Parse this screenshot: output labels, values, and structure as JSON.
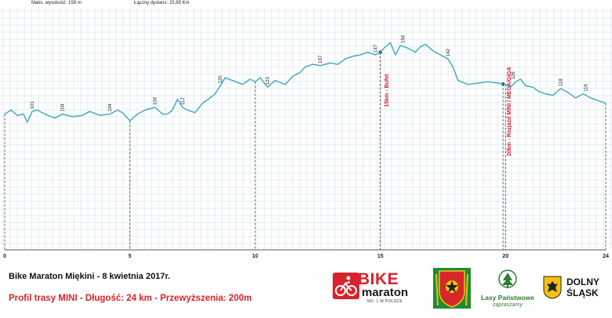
{
  "header": {
    "max_elevation": "Maks. wysokość: 159 m",
    "total_distance": "Łączny dystans: 23,99 Km"
  },
  "chart_data": {
    "type": "area",
    "title": "",
    "xlabel": "",
    "ylabel": "",
    "xlim": [
      0,
      24
    ],
    "ylim": [
      0,
      180
    ],
    "grid": true,
    "colors": {
      "line": "#45aac6",
      "grid": "#d9e6ee",
      "marker_text": "#d21f2a"
    },
    "x_ticks": [
      "0",
      "5",
      "10",
      "15",
      "20",
      "24"
    ],
    "x_tick_values": [
      0,
      5,
      10,
      15,
      20,
      24
    ],
    "series": [
      {
        "x": [
          0,
          0.25,
          0.5,
          0.75,
          0.9,
          1.1,
          1.3,
          1.6,
          2,
          2.3,
          2.7,
          3.1,
          3.4,
          3.8,
          4.2,
          4.5,
          4.7,
          4.85,
          5,
          5.3,
          5.6,
          6,
          6.3,
          6.5,
          6.7,
          6.9,
          7.1,
          7.3,
          7.6,
          7.9,
          8.2,
          8.4,
          8.6,
          8.8,
          9.1,
          9.5,
          9.8,
          10,
          10.2,
          10.5,
          10.8,
          11.2,
          11.5,
          11.8,
          12,
          12.3,
          12.6,
          13,
          13.3,
          13.6,
          13.9,
          14.2,
          14.5,
          14.8,
          15,
          15.2,
          15.4,
          15.6,
          15.8,
          16.1,
          16.4,
          16.6,
          16.8,
          17.1,
          17.4,
          17.7,
          17.9,
          18.1,
          18.5,
          18.9,
          19.3,
          19.7,
          20,
          20.2,
          20.4,
          20.6,
          20.8,
          21.1,
          21.3,
          21.6,
          21.9,
          22.2,
          22.5,
          22.8,
          23.1,
          23.4,
          23.7,
          24
        ],
        "y": [
          101,
          104,
          100,
          101,
          95,
          103,
          104,
          101,
          98,
          101,
          99,
          100,
          103,
          100,
          101,
          104,
          102,
          99,
          96,
          101,
          104,
          106,
          101,
          101,
          104,
          112,
          106,
          104,
          102,
          109,
          113,
          116,
          122,
          128,
          126,
          123,
          127,
          125,
          128,
          121,
          126,
          123,
          129,
          132,
          136,
          138,
          137,
          139,
          138,
          142,
          144,
          145,
          147,
          145,
          147,
          151,
          154,
          145,
          152,
          150,
          147,
          151,
          153,
          148,
          145,
          142,
          136,
          126,
          123,
          124,
          125,
          124,
          123,
          121,
          125,
          127,
          122,
          121,
          118,
          116,
          115,
          120,
          117,
          113,
          116,
          113,
          111,
          109
        ]
      }
    ],
    "point_labels": [
      {
        "x": 1.1,
        "y": 103,
        "text": "101"
      },
      {
        "x": 2.3,
        "y": 101,
        "text": "104"
      },
      {
        "x": 4.2,
        "y": 101,
        "text": "104"
      },
      {
        "x": 6.0,
        "y": 106,
        "text": "109"
      },
      {
        "x": 7.1,
        "y": 106,
        "text": "112"
      },
      {
        "x": 8.6,
        "y": 122,
        "text": "120"
      },
      {
        "x": 10.5,
        "y": 121,
        "text": "123"
      },
      {
        "x": 12.6,
        "y": 137,
        "text": "137"
      },
      {
        "x": 14.8,
        "y": 145,
        "text": "147"
      },
      {
        "x": 15.9,
        "y": 152,
        "text": "154"
      },
      {
        "x": 17.7,
        "y": 142,
        "text": "142"
      },
      {
        "x": 20.3,
        "y": 125,
        "text": "126"
      },
      {
        "x": 22.2,
        "y": 120,
        "text": "118"
      },
      {
        "x": 23.2,
        "y": 116,
        "text": "116"
      }
    ],
    "markers": [
      {
        "x": 15.0,
        "text": "15km - Bufet"
      },
      {
        "x": 19.9,
        "text": "20km - Rozjazd MINI - MEGA/GIGA"
      }
    ]
  },
  "footer": {
    "title": "Bike Maraton Miękini - 8 kwietnia 2017r.",
    "subtitle": "Profil trasy MINI - Długość: 24 km - Przewyższenia: 200m"
  },
  "logos": {
    "bike": {
      "word1": "BIKE",
      "word2": "maraton",
      "tagline": "NO. 1 W POLSCE"
    },
    "lasy": {
      "name": "Lasy Państwowe",
      "tagline": "zapraszamy"
    },
    "ds": {
      "line1": "DOLNY",
      "line2": "ŚLĄSK"
    }
  }
}
